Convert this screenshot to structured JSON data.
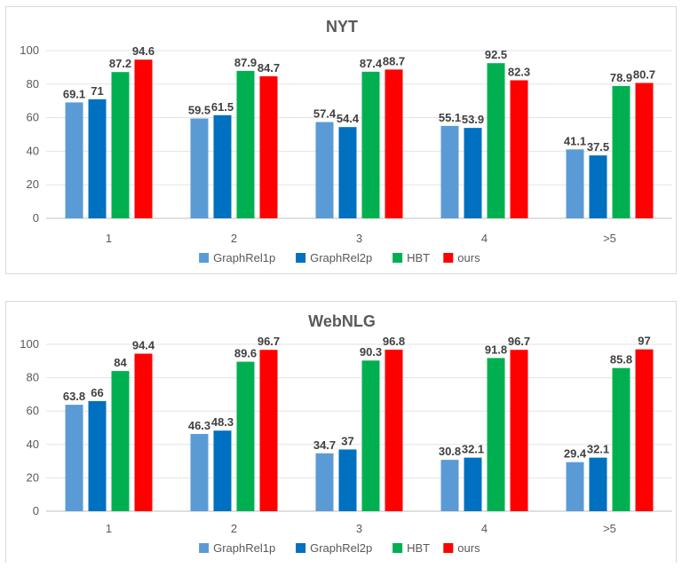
{
  "chart_data": [
    {
      "type": "bar",
      "title": "NYT",
      "categories": [
        "1",
        "2",
        "3",
        "4",
        ">5"
      ],
      "ylim": [
        0,
        100
      ],
      "yticks": [
        0,
        20,
        40,
        60,
        80,
        100
      ],
      "grid": true,
      "legend_position": "bottom",
      "series": [
        {
          "name": "GraphRel1p",
          "color": "#5b9bd5",
          "values": [
            69.1,
            59.5,
            57.4,
            55.1,
            41.1
          ],
          "labels": [
            "69.1",
            "59.5",
            "57.4",
            "55.1",
            "41.1"
          ]
        },
        {
          "name": "GraphRel2p",
          "color": "#0070c0",
          "values": [
            71,
            61.5,
            54.4,
            53.9,
            37.5
          ],
          "labels": [
            "71",
            "61.5",
            "54.4",
            "53.9",
            "37.5"
          ]
        },
        {
          "name": "HBT",
          "color": "#00b050",
          "values": [
            87.2,
            87.9,
            87.4,
            92.5,
            78.9
          ],
          "labels": [
            "87.2",
            "87.9",
            "87.4",
            "92.5",
            "78.9"
          ]
        },
        {
          "name": "ours",
          "color": "#ff0000",
          "values": [
            94.6,
            84.7,
            88.7,
            82.3,
            80.7
          ],
          "labels": [
            "94.6",
            "84.7",
            "88.7",
            "82.3",
            "80.7"
          ]
        }
      ]
    },
    {
      "type": "bar",
      "title": "WebNLG",
      "categories": [
        "1",
        "2",
        "3",
        "4",
        ">5"
      ],
      "ylim": [
        0,
        100
      ],
      "yticks": [
        0,
        20,
        40,
        60,
        80,
        100
      ],
      "grid": true,
      "legend_position": "bottom",
      "series": [
        {
          "name": "GraphRel1p",
          "color": "#5b9bd5",
          "values": [
            63.8,
            46.3,
            34.7,
            30.8,
            29.4
          ],
          "labels": [
            "63.8",
            "46.3",
            "34.7",
            "30.8",
            "29.4"
          ]
        },
        {
          "name": "GraphRel2p",
          "color": "#0070c0",
          "values": [
            66,
            48.3,
            37,
            32.1,
            32.1
          ],
          "labels": [
            "66",
            "48.3",
            "37",
            "32.1",
            "32.1"
          ]
        },
        {
          "name": "HBT",
          "color": "#00b050",
          "values": [
            84,
            89.6,
            90.3,
            91.8,
            85.8
          ],
          "labels": [
            "84",
            "89.6",
            "90.3",
            "91.8",
            "85.8"
          ]
        },
        {
          "name": "ours",
          "color": "#ff0000",
          "values": [
            94.4,
            96.7,
            96.8,
            96.7,
            97
          ],
          "labels": [
            "94.4",
            "96.7",
            "96.8",
            "96.7",
            "97"
          ]
        }
      ]
    }
  ]
}
